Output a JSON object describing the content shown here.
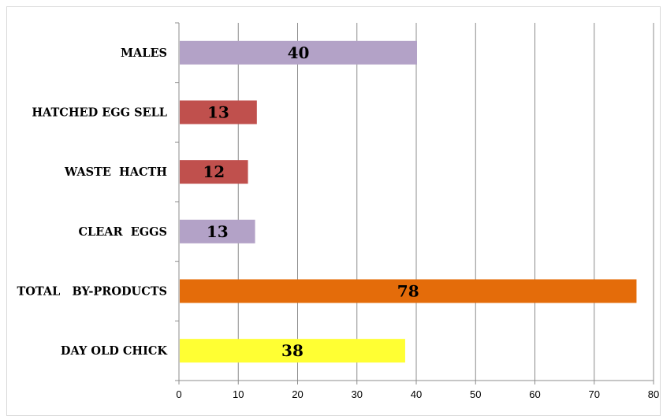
{
  "chart_data": {
    "type": "bar",
    "orientation": "horizontal",
    "title": "",
    "xlabel": "",
    "ylabel": "",
    "xlim": [
      0,
      80
    ],
    "x_ticks": [
      "0",
      "10",
      "20",
      "30",
      "40",
      "50",
      "60",
      "70",
      "80"
    ],
    "grid": true,
    "categories": [
      "MALES",
      "HATCHED EGG SELL",
      "WASTE  HACTH",
      "CLEAR  EGGS",
      "TOTAL   BY-PRODUCTS",
      "DAY OLD CHICK"
    ],
    "values": [
      40,
      13,
      12,
      13,
      78,
      38
    ],
    "bar_lengths": [
      40,
      13,
      11.5,
      12.7,
      77,
      38
    ],
    "data_labels": [
      "40",
      "13",
      "12",
      "13",
      "78",
      "38"
    ],
    "colors": [
      "#b3a2c7",
      "#c0504d",
      "#c0504d",
      "#b3a2c7",
      "#e46c0a",
      "#ffff33"
    ]
  }
}
